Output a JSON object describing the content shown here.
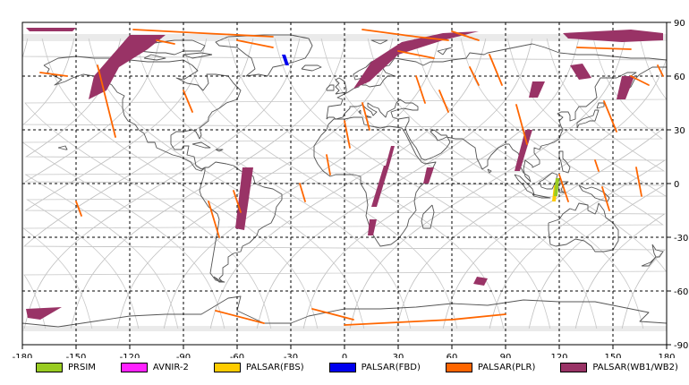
{
  "chart_data": {
    "type": "map",
    "x_ticks": [
      -180,
      -150,
      -120,
      -90,
      -60,
      -30,
      0,
      30,
      60,
      90,
      120,
      150,
      180
    ],
    "y_ticks": [
      90,
      60,
      30,
      0,
      -30,
      -60,
      -90
    ],
    "xlim": [
      -180,
      180
    ],
    "ylim": [
      -90,
      90
    ],
    "grid": true,
    "legend_position": "bottom",
    "legend": [
      {
        "label": "PRSIM",
        "color": "#99cc22"
      },
      {
        "label": "AVNIR-2",
        "color": "#ff22ff"
      },
      {
        "label": "PALSAR(FBS)",
        "color": "#ffcc00"
      },
      {
        "label": "PALSAR(FBD)",
        "color": "#0000ee"
      },
      {
        "label": "PALSAR(PLR)",
        "color": "#ff6600"
      },
      {
        "label": "PALSAR(WB1/WB2)",
        "color": "#993366"
      }
    ],
    "coverage": [
      {
        "sensor": "PALSAR(WB1/WB2)",
        "polygon": [
          [
            -178,
            87
          ],
          [
            -150,
            87
          ],
          [
            -152,
            85
          ],
          [
            -176,
            85
          ]
        ]
      },
      {
        "sensor": "PALSAR(WB1/WB2)",
        "polygon": [
          [
            -140,
            60
          ],
          [
            -120,
            83
          ],
          [
            -100,
            83
          ],
          [
            -110,
            75
          ],
          [
            -126,
            65
          ],
          [
            -133,
            52
          ],
          [
            -143,
            47
          ]
        ]
      },
      {
        "sensor": "PALSAR(WB1/WB2)",
        "polygon": [
          [
            5,
            53
          ],
          [
            15,
            68
          ],
          [
            32,
            79
          ],
          [
            55,
            84
          ],
          [
            75,
            85
          ],
          [
            55,
            80
          ],
          [
            30,
            72
          ],
          [
            14,
            57
          ]
        ]
      },
      {
        "sensor": "PALSAR(WB1/WB2)",
        "polygon": [
          [
            122,
            84
          ],
          [
            160,
            86
          ],
          [
            178,
            84
          ],
          [
            178,
            80
          ],
          [
            155,
            79
          ],
          [
            125,
            81
          ]
        ]
      },
      {
        "sensor": "PALSAR(WB1/WB2)",
        "polygon": [
          [
            -57,
            9
          ],
          [
            -51,
            9
          ],
          [
            -56,
            -26
          ],
          [
            -61,
            -25
          ]
        ]
      },
      {
        "sensor": "PALSAR(WB1/WB2)",
        "polygon": [
          [
            22,
            10
          ],
          [
            25,
            10
          ],
          [
            18,
            -13
          ],
          [
            15,
            -13
          ]
        ]
      },
      {
        "sensor": "PALSAR(WB1/WB2)",
        "polygon": [
          [
            26,
            21
          ],
          [
            28,
            21
          ],
          [
            25,
            10
          ],
          [
            23,
            10
          ]
        ]
      },
      {
        "sensor": "PALSAR(WB1/WB2)",
        "polygon": [
          [
            14,
            -20
          ],
          [
            18,
            -20
          ],
          [
            16,
            -29
          ],
          [
            13,
            -29
          ]
        ]
      },
      {
        "sensor": "PALSAR(WB1/WB2)",
        "polygon": [
          [
            46,
            9
          ],
          [
            50,
            9
          ],
          [
            47,
            0
          ],
          [
            44,
            0
          ]
        ]
      },
      {
        "sensor": "PALSAR(WB1/WB2)",
        "polygon": [
          [
            101,
            30
          ],
          [
            105,
            30
          ],
          [
            98,
            7
          ],
          [
            95,
            7
          ]
        ]
      },
      {
        "sensor": "PALSAR(WB1/WB2)",
        "polygon": [
          [
            105,
            57
          ],
          [
            112,
            57
          ],
          [
            108,
            48
          ],
          [
            103,
            48
          ]
        ]
      },
      {
        "sensor": "PALSAR(WB1/WB2)",
        "polygon": [
          [
            126,
            66
          ],
          [
            133,
            67
          ],
          [
            138,
            59
          ],
          [
            131,
            58
          ]
        ]
      },
      {
        "sensor": "PALSAR(WB1/WB2)",
        "polygon": [
          [
            155,
            60
          ],
          [
            162,
            60
          ],
          [
            157,
            47
          ],
          [
            152,
            47
          ]
        ]
      },
      {
        "sensor": "PALSAR(WB1/WB2)",
        "polygon": [
          [
            -178,
            -70
          ],
          [
            -158,
            -69
          ],
          [
            -170,
            -76
          ],
          [
            -177,
            -75
          ]
        ]
      },
      {
        "sensor": "PALSAR(WB1/WB2)",
        "polygon": [
          [
            74,
            -52
          ],
          [
            80,
            -53
          ],
          [
            78,
            -57
          ],
          [
            72,
            -56
          ]
        ]
      },
      {
        "sensor": "PALSAR(FBD)",
        "polygon": [
          [
            -35,
            72
          ],
          [
            -33,
            72
          ],
          [
            -31,
            66
          ],
          [
            -33,
            66
          ]
        ]
      },
      {
        "sensor": "PALSAR(FBS)",
        "polygon": [
          [
            117,
            -1
          ],
          [
            119,
            -1
          ],
          [
            118,
            -10
          ],
          [
            116,
            -10
          ]
        ]
      },
      {
        "sensor": "PRSIM",
        "polygon": [
          [
            118,
            3
          ],
          [
            120,
            3
          ],
          [
            119,
            -7
          ],
          [
            117,
            -7
          ]
        ]
      }
    ],
    "plr_tracks": [
      [
        [
          -170,
          62
        ],
        [
          -155,
          60
        ]
      ],
      [
        [
          -138,
          66
        ],
        [
          -128,
          26
        ]
      ],
      [
        [
          -118,
          86
        ],
        [
          -80,
          84
        ],
        [
          -40,
          82
        ]
      ],
      [
        [
          -60,
          80
        ],
        [
          -40,
          76
        ]
      ],
      [
        [
          -76,
          -10
        ],
        [
          -70,
          -30
        ]
      ],
      [
        [
          -62,
          -4
        ],
        [
          -58,
          -16
        ]
      ],
      [
        [
          -72,
          -71
        ],
        [
          -45,
          -78
        ]
      ],
      [
        [
          -18,
          -70
        ],
        [
          5,
          -76
        ]
      ],
      [
        [
          0,
          -79
        ],
        [
          60,
          -76
        ],
        [
          90,
          -73
        ]
      ],
      [
        [
          10,
          86
        ],
        [
          40,
          82
        ],
        [
          58,
          80
        ]
      ],
      [
        [
          30,
          74
        ],
        [
          50,
          70
        ]
      ],
      [
        [
          40,
          60
        ],
        [
          45,
          45
        ]
      ],
      [
        [
          53,
          52
        ],
        [
          58,
          40
        ]
      ],
      [
        [
          60,
          85
        ],
        [
          75,
          80
        ]
      ],
      [
        [
          70,
          65
        ],
        [
          75,
          55
        ]
      ],
      [
        [
          81,
          72
        ],
        [
          88,
          55
        ]
      ],
      [
        [
          96,
          44
        ],
        [
          102,
          22
        ]
      ],
      [
        [
          130,
          76
        ],
        [
          160,
          75
        ]
      ],
      [
        [
          145,
          46
        ],
        [
          152,
          29
        ]
      ],
      [
        [
          160,
          60
        ],
        [
          170,
          55
        ]
      ],
      [
        [
          163,
          9
        ],
        [
          166,
          -7
        ]
      ],
      [
        [
          120,
          5
        ],
        [
          125,
          -10
        ]
      ],
      [
        [
          144,
          -2
        ],
        [
          148,
          -15
        ]
      ],
      [
        [
          140,
          13
        ],
        [
          142,
          7
        ]
      ],
      [
        [
          175,
          66
        ],
        [
          178,
          60
        ]
      ],
      [
        [
          -25,
          0
        ],
        [
          -22,
          -10
        ]
      ],
      [
        [
          -10,
          16
        ],
        [
          -8,
          5
        ]
      ],
      [
        [
          0,
          35
        ],
        [
          3,
          20
        ]
      ],
      [
        [
          10,
          45
        ],
        [
          14,
          30
        ]
      ],
      [
        [
          -90,
          52
        ],
        [
          -85,
          40
        ]
      ],
      [
        [
          -150,
          -10
        ],
        [
          -147,
          -18
        ]
      ],
      [
        [
          -105,
          80
        ],
        [
          -95,
          78
        ]
      ]
    ]
  }
}
